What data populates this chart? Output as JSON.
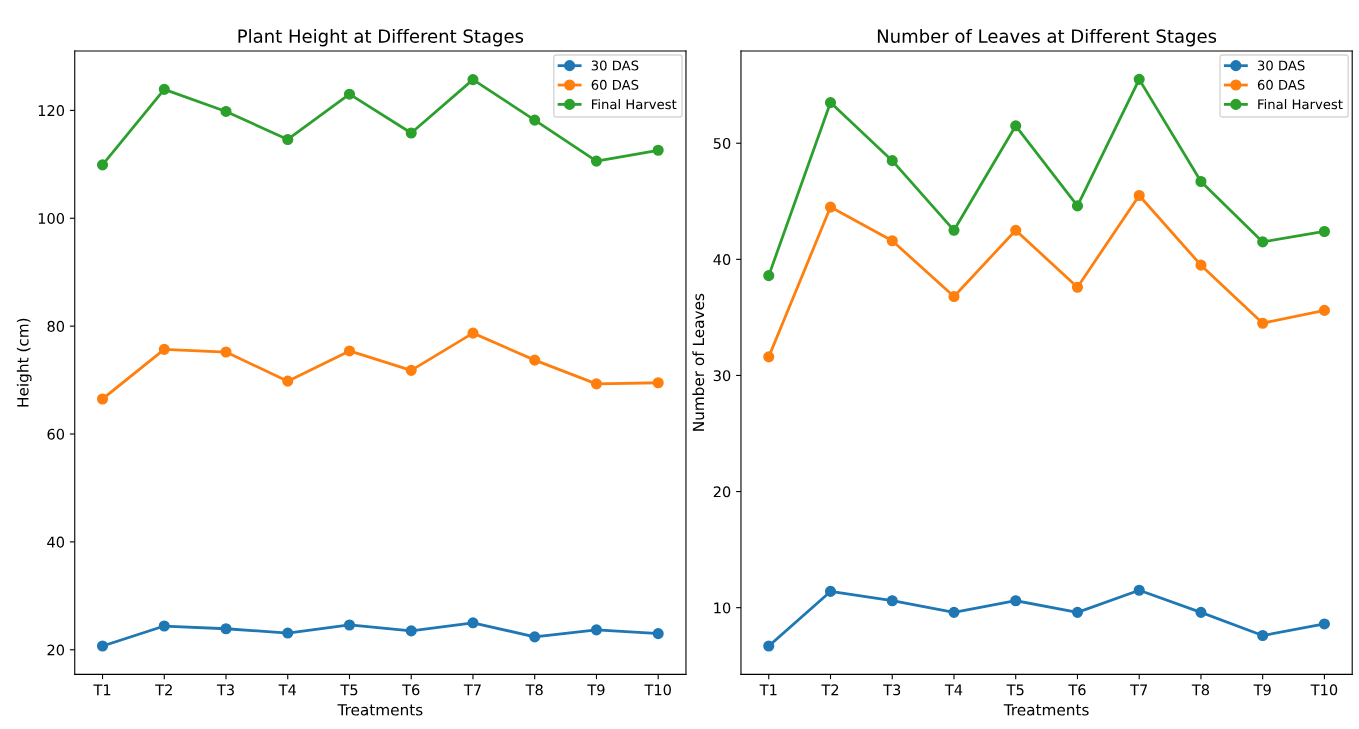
{
  "chart_data": [
    {
      "type": "line",
      "title": "Plant Height at Different Stages",
      "xlabel": "Treatments",
      "ylabel": "Height (cm)",
      "categories": [
        "T1",
        "T2",
        "T3",
        "T4",
        "T5",
        "T6",
        "T7",
        "T8",
        "T9",
        "T10"
      ],
      "series": [
        {
          "name": "30 DAS",
          "color": "#1f77b4",
          "values": [
            20.7,
            24.4,
            23.9,
            23.1,
            24.6,
            23.5,
            25.0,
            22.4,
            23.7,
            23.0
          ]
        },
        {
          "name": "60 DAS",
          "color": "#ff7f0e",
          "values": [
            66.5,
            75.7,
            75.2,
            69.8,
            75.4,
            71.8,
            78.7,
            73.7,
            69.3,
            69.5
          ]
        },
        {
          "name": "Final Harvest",
          "color": "#2ca02c",
          "values": [
            109.9,
            123.9,
            119.8,
            114.6,
            123.0,
            115.8,
            125.7,
            118.2,
            110.6,
            112.6
          ]
        }
      ],
      "ylim": [
        15.45,
        131
      ],
      "yticks": [
        20,
        40,
        60,
        80,
        100,
        120
      ],
      "marker": "circle",
      "line_style": "solid",
      "legend": "top right",
      "grid": false
    },
    {
      "type": "line",
      "title": "Number of Leaves at Different Stages",
      "xlabel": "Treatments",
      "ylabel": "Number of Leaves",
      "categories": [
        "T1",
        "T2",
        "T3",
        "T4",
        "T5",
        "T6",
        "T7",
        "T8",
        "T9",
        "T10"
      ],
      "series": [
        {
          "name": "30 DAS",
          "color": "#1f77b4",
          "values": [
            6.7,
            11.4,
            10.6,
            9.6,
            10.6,
            9.6,
            11.5,
            9.6,
            7.6,
            8.6
          ]
        },
        {
          "name": "60 DAS",
          "color": "#ff7f0e",
          "values": [
            31.6,
            44.5,
            41.6,
            36.8,
            42.5,
            37.6,
            45.5,
            39.5,
            34.5,
            35.6
          ]
        },
        {
          "name": "Final Harvest",
          "color": "#2ca02c",
          "values": [
            38.6,
            53.5,
            48.5,
            42.5,
            51.5,
            44.6,
            55.5,
            46.7,
            41.5,
            42.4
          ]
        }
      ],
      "ylim": [
        4.26,
        57.94
      ],
      "yticks": [
        10,
        20,
        30,
        40,
        50
      ],
      "marker": "circle",
      "line_style": "solid",
      "legend": "top right",
      "grid": false
    }
  ]
}
